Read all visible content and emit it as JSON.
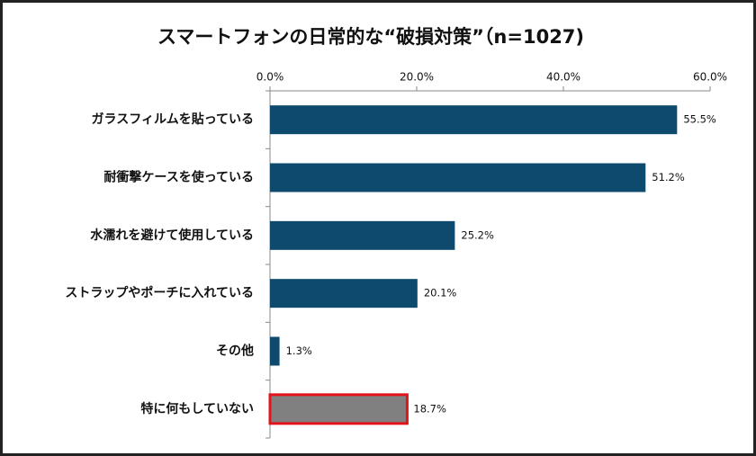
{
  "chart_data": {
    "type": "barh",
    "title": "スマートフォンの日常的な“破損対策”（n=1027)",
    "categories": [
      "ガラスフィルムを貼っている",
      "耐衝撃ケースを使っている",
      "水濡れを避けて使用している",
      "ストラップやポーチに入れている",
      "その他",
      "特に何もしていない"
    ],
    "values": [
      55.5,
      51.2,
      25.2,
      20.1,
      1.3,
      18.7
    ],
    "value_labels": [
      "55.5%",
      "51.2%",
      "25.2%",
      "20.1%",
      "1.3%",
      "18.7%"
    ],
    "colors": [
      "#0d4a6e",
      "#0d4a6e",
      "#0d4a6e",
      "#0d4a6e",
      "#0d4a6e",
      "#808080"
    ],
    "edge_colors": [
      "none",
      "none",
      "none",
      "none",
      "none",
      "#e3131b"
    ],
    "xlim": [
      0,
      60
    ],
    "xticks": [
      {
        "value": 0,
        "label": "0.0%"
      },
      {
        "value": 20,
        "label": "20.0%"
      },
      {
        "value": 40,
        "label": "40.0%"
      },
      {
        "value": 60,
        "label": "60.0%"
      }
    ]
  }
}
